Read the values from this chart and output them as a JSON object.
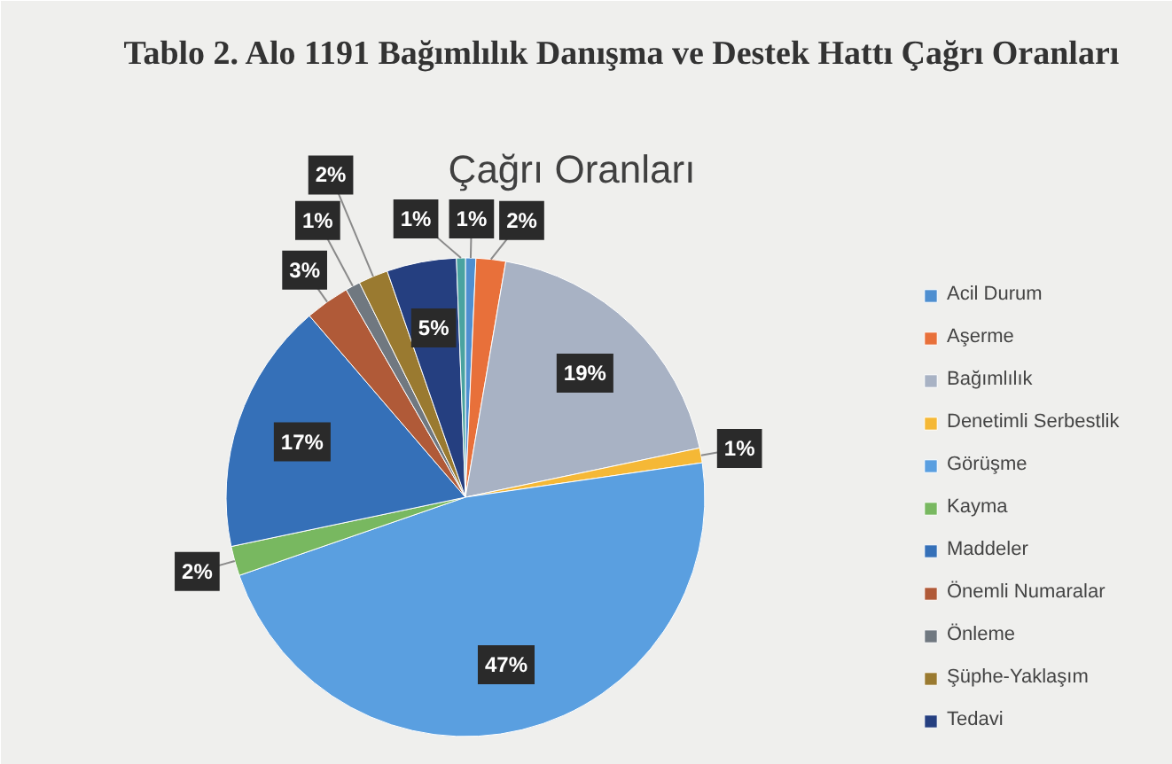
{
  "chart_data": {
    "type": "pie",
    "title": "Tablo 2. Alo 1191 Bağımlılık Danışma ve Destek Hattı Çağrı Oranları",
    "subtitle": "Çağrı Oranları",
    "categories": [
      "Acil Durum",
      "Aşerme",
      "Bağımlılık",
      "Denetimli Serbestlik",
      "Görüşme",
      "Kayma",
      "Maddeler",
      "Önemli Numaralar",
      "Önleme",
      "Şüphe-Yaklaşım",
      "Tedavi",
      null
    ],
    "values": [
      0.7,
      2,
      19,
      1,
      47,
      2,
      17,
      3,
      1,
      2,
      4.7,
      0.6
    ],
    "colors": [
      "#4f8fd0",
      "#e8703a",
      "#a8b2c4",
      "#f5b836",
      "#5a9fe0",
      "#78b860",
      "#3570b8",
      "#b05a38",
      "#707880",
      "#9a7a30",
      "#253f80",
      "#4aa3a0"
    ],
    "value_labels": [
      "1%",
      "2%",
      "19%",
      "1%",
      "47%",
      "2%",
      "17%",
      "3%",
      "1%",
      "2%",
      "5%",
      "1%"
    ],
    "legend": "right"
  }
}
